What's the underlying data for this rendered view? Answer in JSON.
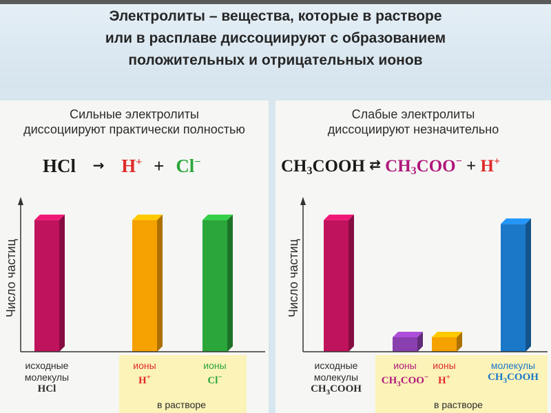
{
  "header": {
    "line1": "Электролиты – вещества, которые в растворе",
    "line2": "или в расплаве диссоциируют с образованием",
    "line3": "положительных и отрицательных ионов"
  },
  "left": {
    "title1": "Сильные электролиты",
    "title2": "диссоциируют практически полностью",
    "eq": {
      "reactant": "HCl",
      "arrow": "→",
      "ion1": "H",
      "ion1_charge": "+",
      "plus": "+",
      "ion2": "Cl",
      "ion2_charge": "−"
    },
    "ylabel": "Число частиц",
    "in_solution": "в растворе"
  },
  "right": {
    "title1": "Слабые электролиты",
    "title2": "диссоциируют незначительно",
    "eq": {
      "r1": "CH",
      "r_sub": "3",
      "r2": "COOH",
      "arrow": "⇄",
      "p1": "CH",
      "p_sub": "3",
      "p2": "COO",
      "p_charge": "−",
      "plus": "+",
      "ion": "H",
      "ion_charge": "+"
    },
    "ylabel": "Число частиц",
    "in_solution": "в растворе"
  },
  "colors": {
    "magenta": "#c0135e",
    "orange": "#f5a100",
    "green": "#2aa63a",
    "purple": "#8a3fae",
    "blue": "#1b78c8",
    "red": "#e02a2a"
  },
  "chart_data": [
    {
      "type": "bar",
      "title": "Сильные электролиты диссоциируют практически полностью",
      "ylabel": "Число частиц",
      "categories": [
        "исходные молекулы HCl",
        "ионы H+",
        "ионы Cl−"
      ],
      "values": [
        100,
        100,
        100
      ],
      "colors": [
        "#c0135e",
        "#f5a100",
        "#2aa63a"
      ],
      "ylim": [
        0,
        115
      ]
    },
    {
      "type": "bar",
      "title": "Слабые электролиты диссоциируют незначительно",
      "ylabel": "Число частиц",
      "categories": [
        "исходные молекулы CH3COOH",
        "ионы CH3COO−",
        "ионы H+",
        "молекулы CH3COOH"
      ],
      "values": [
        100,
        11,
        11,
        97
      ],
      "colors": [
        "#c0135e",
        "#8a3fae",
        "#f5a100",
        "#1b78c8"
      ],
      "ylim": [
        0,
        115
      ]
    }
  ],
  "cats_left": [
    {
      "l1": "исходные",
      "l2": "молекулы",
      "f": "HCl"
    },
    {
      "l1": "ионы",
      "f": "H",
      "sup": "+"
    },
    {
      "l1": "ионы",
      "f": "Cl",
      "sup": "−"
    }
  ],
  "cats_right": [
    {
      "l1": "исходные",
      "l2": "молекулы",
      "f1": "CH",
      "sub": "3",
      "f2": "COOH"
    },
    {
      "l1": "ионы",
      "f1": "CH",
      "sub": "3",
      "f2": "COO",
      "sup": "−"
    },
    {
      "l1": "ионы",
      "f": "H",
      "sup": "+"
    },
    {
      "l1": "молекулы",
      "f1": "CH",
      "sub": "3",
      "f2": "COOH"
    }
  ]
}
